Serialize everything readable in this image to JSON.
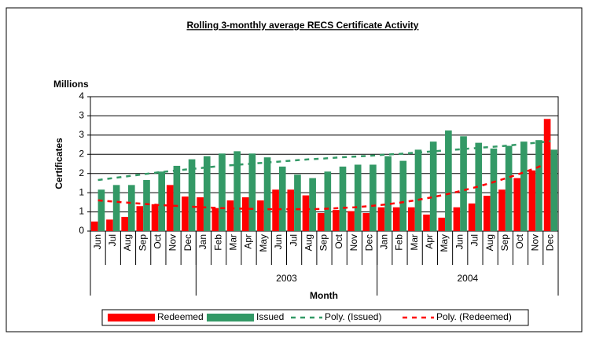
{
  "chart_data": {
    "type": "bar",
    "title": "Rolling 3-monthly average RECS Certificate Activity",
    "unit_label": "Millions",
    "y_label": "Certificates",
    "x_label": "Month",
    "categories": [
      "Jun",
      "Jul",
      "Aug",
      "Sep",
      "Oct",
      "Nov",
      "Dec",
      "Jan",
      "Feb",
      "Mar",
      "Apr",
      "May",
      "Jun",
      "Jul",
      "Aug",
      "Sep",
      "Oct",
      "Nov",
      "Dec",
      "Jan",
      "Feb",
      "Mar",
      "Apr",
      "May",
      "Jun",
      "Jul",
      "Aug",
      "Sep",
      "Oct",
      "Nov",
      "Dec"
    ],
    "groups": [
      null,
      "2003",
      "2004"
    ],
    "group_sizes": [
      7,
      12,
      12
    ],
    "ylim": [
      0,
      3.5
    ],
    "yticks": [
      0,
      {
        "value": 0.5,
        "label": "1"
      },
      1,
      {
        "value": 1.5,
        "label": "2"
      },
      2,
      {
        "value": 2.5,
        "label": "3"
      },
      3,
      {
        "value": 3.5,
        "label": "4"
      }
    ],
    "grid": true,
    "legend": "bottom",
    "series": [
      {
        "name": "Redeemed",
        "color": "#ff0000",
        "type": "bar",
        "values": [
          0.25,
          0.3,
          0.37,
          0.65,
          0.7,
          1.2,
          0.9,
          0.88,
          0.6,
          0.8,
          0.88,
          0.8,
          1.08,
          1.08,
          0.93,
          0.47,
          0.55,
          0.52,
          0.47,
          0.62,
          0.62,
          0.62,
          0.43,
          0.35,
          0.62,
          0.72,
          0.92,
          1.08,
          1.38,
          1.58,
          2.92
        ]
      },
      {
        "name": "Issued",
        "color": "#339966",
        "type": "bar",
        "values": [
          1.08,
          1.2,
          1.2,
          1.33,
          1.55,
          1.7,
          1.87,
          1.95,
          2.02,
          2.08,
          2.02,
          1.92,
          1.68,
          1.47,
          1.38,
          1.55,
          1.68,
          1.73,
          1.73,
          1.95,
          1.83,
          2.12,
          2.33,
          2.62,
          2.47,
          2.3,
          2.15,
          2.22,
          2.33,
          2.37,
          2.12
        ]
      },
      {
        "name": "Poly. (Issued)",
        "color": "#339966",
        "type": "line",
        "values": [
          1.33,
          1.38,
          1.43,
          1.48,
          1.53,
          1.57,
          1.61,
          1.65,
          1.69,
          1.72,
          1.75,
          1.78,
          1.81,
          1.84,
          1.87,
          1.89,
          1.92,
          1.94,
          1.96,
          1.99,
          2.01,
          2.04,
          2.07,
          2.1,
          2.13,
          2.16,
          2.19,
          2.22,
          2.26,
          2.3,
          2.34
        ]
      },
      {
        "name": "Poly. (Redeemed)",
        "color": "#ff0000",
        "type": "line",
        "values": [
          0.8,
          0.77,
          0.74,
          0.71,
          0.68,
          0.66,
          0.64,
          0.62,
          0.6,
          0.59,
          0.58,
          0.57,
          0.57,
          0.57,
          0.57,
          0.58,
          0.6,
          0.62,
          0.65,
          0.69,
          0.74,
          0.8,
          0.87,
          0.95,
          1.04,
          1.14,
          1.25,
          1.37,
          1.5,
          1.64,
          1.8
        ]
      }
    ]
  }
}
